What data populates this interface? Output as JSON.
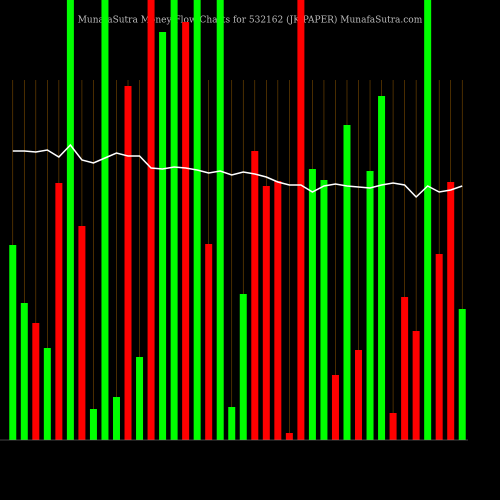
{
  "chart_data": {
    "type": "bar",
    "title": "MunafaSutra Money Flow Charts for 532162 (JK PAPER) MunafaSutra.com",
    "categories": [
      null,
      null,
      null,
      null,
      null,
      null,
      null,
      null,
      null,
      null,
      null,
      null,
      null,
      null,
      null,
      null,
      null,
      null,
      null,
      null,
      null,
      null,
      null,
      null,
      null,
      null,
      null,
      null,
      null,
      null,
      null,
      null,
      null,
      null,
      null,
      null,
      null,
      null,
      null,
      null
    ],
    "values": [
      195,
      137,
      117,
      92,
      257,
      440,
      214,
      31,
      440,
      43,
      354,
      83,
      440,
      408,
      440,
      418,
      440,
      196,
      440,
      33,
      146,
      289,
      254,
      259,
      7,
      440,
      271,
      260,
      65,
      315,
      90,
      269,
      344,
      27,
      143,
      109,
      440,
      186,
      258,
      131
    ],
    "colors": [
      "#00ff00",
      "#00ff00",
      "#ff0000",
      "#00ff00",
      "#ff0000",
      "#00ff00",
      "#ff0000",
      "#00ff00",
      "#00ff00",
      "#00ff00",
      "#ff0000",
      "#00ff00",
      "#ff0000",
      "#00ff00",
      "#00ff00",
      "#ff0000",
      "#00ff00",
      "#ff0000",
      "#00ff00",
      "#00ff00",
      "#00ff00",
      "#ff0000",
      "#ff0000",
      "#ff0000",
      "#ff0000",
      "#ff0000",
      "#00ff00",
      "#00ff00",
      "#ff0000",
      "#00ff00",
      "#ff0000",
      "#00ff00",
      "#00ff00",
      "#ff0000",
      "#ff0000",
      "#ff0000",
      "#00ff00",
      "#ff0000",
      "#ff0000",
      "#00ff00"
    ],
    "line": {
      "color": "#ffffff",
      "values": [
        289,
        289,
        288,
        290,
        283,
        295,
        280,
        277,
        282,
        287,
        284,
        284,
        272,
        271,
        273,
        272,
        270,
        267,
        269,
        265,
        268,
        266,
        263,
        258,
        255,
        255,
        248,
        254,
        256,
        254,
        253,
        252,
        255,
        257,
        255,
        243,
        254,
        248,
        250,
        254
      ]
    },
    "ylim": [
      0,
      440
    ]
  }
}
